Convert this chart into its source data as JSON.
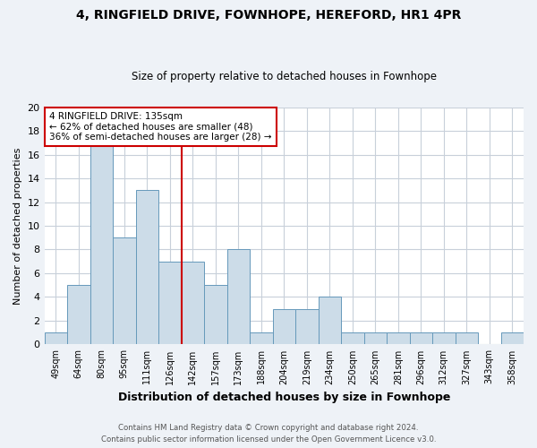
{
  "title1": "4, RINGFIELD DRIVE, FOWNHOPE, HEREFORD, HR1 4PR",
  "title2": "Size of property relative to detached houses in Fownhope",
  "xlabel": "Distribution of detached houses by size in Fownhope",
  "ylabel": "Number of detached properties",
  "bin_labels": [
    "49sqm",
    "64sqm",
    "80sqm",
    "95sqm",
    "111sqm",
    "126sqm",
    "142sqm",
    "157sqm",
    "173sqm",
    "188sqm",
    "204sqm",
    "219sqm",
    "234sqm",
    "250sqm",
    "265sqm",
    "281sqm",
    "296sqm",
    "312sqm",
    "327sqm",
    "343sqm",
    "358sqm"
  ],
  "bar_heights": [
    1,
    5,
    17,
    9,
    13,
    7,
    7,
    5,
    8,
    1,
    3,
    3,
    4,
    1,
    1,
    1,
    1,
    1,
    1,
    0,
    1
  ],
  "bar_color": "#ccdce8",
  "bar_edge_color": "#6699bb",
  "red_line_x": 5.5,
  "annotation_text": "4 RINGFIELD DRIVE: 135sqm\n← 62% of detached houses are smaller (48)\n36% of semi-detached houses are larger (28) →",
  "annotation_box_color": "#ffffff",
  "annotation_box_edge_color": "#cc0000",
  "ylim": [
    0,
    20
  ],
  "yticks": [
    0,
    2,
    4,
    6,
    8,
    10,
    12,
    14,
    16,
    18,
    20
  ],
  "footer1": "Contains HM Land Registry data © Crown copyright and database right 2024.",
  "footer2": "Contains public sector information licensed under the Open Government Licence v3.0.",
  "bg_color": "#eef2f7",
  "plot_bg_color": "#ffffff",
  "grid_color": "#c8d0da"
}
